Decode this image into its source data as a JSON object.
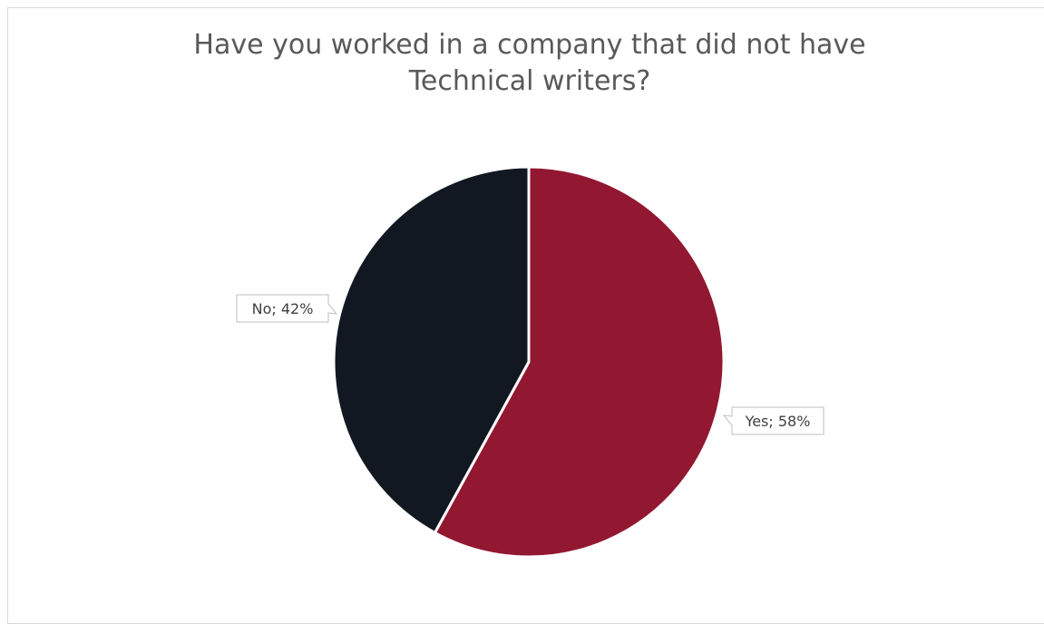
{
  "chart_data": {
    "type": "pie",
    "title": "Have you worked in a company that did not have Technical writers?",
    "categories": [
      "Yes",
      "No"
    ],
    "values": [
      58,
      42
    ],
    "colors": [
      "#921730",
      "#111821"
    ],
    "data_labels": [
      "Yes; 58%",
      "No; 42%"
    ],
    "legend": "none",
    "start_angle": "12 o'clock",
    "direction": "clockwise"
  }
}
